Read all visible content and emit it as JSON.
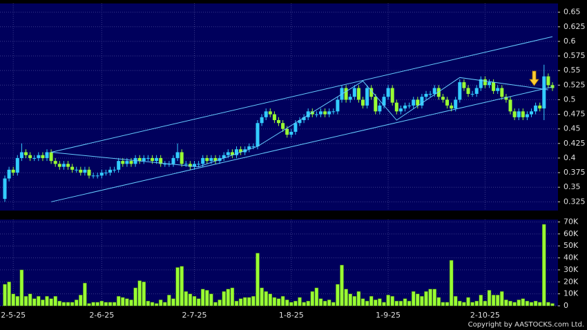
{
  "chart_data": [
    {
      "type": "candlestick",
      "categories": [
        null,
        null,
        "2-5-25",
        null,
        null,
        null,
        null,
        null,
        null,
        null,
        null,
        null,
        null,
        null,
        null,
        null,
        null,
        null,
        null,
        null,
        null,
        null,
        null,
        "2-6-25",
        null,
        null,
        null,
        null,
        null,
        null,
        null,
        null,
        null,
        null,
        null,
        null,
        null,
        null,
        null,
        null,
        null,
        null,
        null,
        null,
        null,
        "2-7-25",
        null,
        null,
        null,
        null,
        null,
        null,
        null,
        null,
        null,
        null,
        null,
        null,
        null,
        null,
        null,
        null,
        null,
        null,
        null,
        null,
        null,
        null,
        "1-8-25",
        null,
        null,
        null,
        null,
        null,
        null,
        null,
        null,
        null,
        null,
        null,
        null,
        null,
        null,
        null,
        null,
        null,
        null,
        null,
        null,
        null,
        null,
        "1-9-25",
        null,
        null,
        null,
        null,
        null,
        null,
        null,
        null,
        null,
        null,
        null,
        null,
        null,
        null,
        null,
        null,
        null,
        null,
        null,
        null,
        null,
        null,
        "2-10-25",
        null,
        null,
        null,
        null,
        null,
        null,
        null,
        null,
        null,
        null,
        null,
        null,
        null,
        null,
        null,
        null
      ],
      "open": [
        0.33,
        0.365,
        0.38,
        0.375,
        0.4,
        0.41,
        0.405,
        0.4,
        0.4,
        0.405,
        0.4,
        0.41,
        0.395,
        0.39,
        0.385,
        0.39,
        0.385,
        0.38,
        0.38,
        0.375,
        0.38,
        0.37,
        0.37,
        0.37,
        0.375,
        0.375,
        0.38,
        0.38,
        0.395,
        0.39,
        0.395,
        0.39,
        0.4,
        0.395,
        0.4,
        0.4,
        0.395,
        0.4,
        0.39,
        0.39,
        0.39,
        0.4,
        0.41,
        0.39,
        0.39,
        0.385,
        0.39,
        0.39,
        0.4,
        0.395,
        0.4,
        0.395,
        0.4,
        0.405,
        0.41,
        0.405,
        0.415,
        0.41,
        0.415,
        0.42,
        0.42,
        0.46,
        0.47,
        0.48,
        0.475,
        0.465,
        0.46,
        0.45,
        0.44,
        0.445,
        0.46,
        0.465,
        0.47,
        0.48,
        0.475,
        0.475,
        0.48,
        0.475,
        0.48,
        0.48,
        0.5,
        0.52,
        0.5,
        0.505,
        0.52,
        0.5,
        0.49,
        0.52,
        0.505,
        0.48,
        0.49,
        0.505,
        0.52,
        0.495,
        0.48,
        0.485,
        0.49,
        0.49,
        0.5,
        0.49,
        0.505,
        0.51,
        0.51,
        0.52,
        0.505,
        0.5,
        0.49,
        0.485,
        0.5,
        0.53,
        0.52,
        0.51,
        0.51,
        0.52,
        0.535,
        0.525,
        0.53,
        0.515,
        0.52,
        0.505,
        0.5,
        0.48,
        0.47,
        0.48,
        0.47,
        0.475,
        0.48,
        0.49,
        0.485,
        0.54,
        0.525
      ],
      "high": [
        0.37,
        0.385,
        0.385,
        0.405,
        0.425,
        0.415,
        0.41,
        0.405,
        0.41,
        0.41,
        0.415,
        0.415,
        0.4,
        0.395,
        0.395,
        0.395,
        0.39,
        0.385,
        0.385,
        0.385,
        0.385,
        0.375,
        0.375,
        0.38,
        0.38,
        0.385,
        0.385,
        0.4,
        0.4,
        0.4,
        0.4,
        0.405,
        0.405,
        0.405,
        0.405,
        0.405,
        0.405,
        0.405,
        0.395,
        0.395,
        0.405,
        0.425,
        0.415,
        0.395,
        0.395,
        0.395,
        0.395,
        0.405,
        0.405,
        0.405,
        0.405,
        0.405,
        0.41,
        0.415,
        0.415,
        0.42,
        0.42,
        0.42,
        0.425,
        0.425,
        0.465,
        0.475,
        0.485,
        0.485,
        0.48,
        0.47,
        0.465,
        0.455,
        0.45,
        0.465,
        0.47,
        0.475,
        0.485,
        0.485,
        0.48,
        0.485,
        0.485,
        0.485,
        0.485,
        0.505,
        0.525,
        0.525,
        0.51,
        0.525,
        0.525,
        0.505,
        0.525,
        0.525,
        0.51,
        0.495,
        0.51,
        0.525,
        0.525,
        0.5,
        0.49,
        0.495,
        0.495,
        0.505,
        0.505,
        0.51,
        0.515,
        0.515,
        0.525,
        0.525,
        0.51,
        0.505,
        0.495,
        0.505,
        0.535,
        0.535,
        0.525,
        0.515,
        0.525,
        0.54,
        0.54,
        0.535,
        0.535,
        0.525,
        0.525,
        0.51,
        0.505,
        0.485,
        0.485,
        0.485,
        0.48,
        0.485,
        0.495,
        0.495,
        0.56,
        0.545,
        0.53
      ],
      "low": [
        0.325,
        0.36,
        0.37,
        0.37,
        0.395,
        0.4,
        0.395,
        0.395,
        0.395,
        0.395,
        0.395,
        0.39,
        0.385,
        0.38,
        0.38,
        0.38,
        0.375,
        0.375,
        0.37,
        0.37,
        0.365,
        0.365,
        0.365,
        0.365,
        0.37,
        0.37,
        0.375,
        0.375,
        0.385,
        0.385,
        0.385,
        0.385,
        0.39,
        0.39,
        0.395,
        0.39,
        0.39,
        0.385,
        0.385,
        0.385,
        0.385,
        0.395,
        0.385,
        0.385,
        0.38,
        0.38,
        0.385,
        0.385,
        0.39,
        0.39,
        0.39,
        0.39,
        0.395,
        0.4,
        0.4,
        0.4,
        0.405,
        0.405,
        0.41,
        0.415,
        0.415,
        0.455,
        0.465,
        0.47,
        0.46,
        0.455,
        0.445,
        0.435,
        0.435,
        0.44,
        0.455,
        0.46,
        0.465,
        0.47,
        0.47,
        0.47,
        0.47,
        0.47,
        0.475,
        0.475,
        0.495,
        0.495,
        0.495,
        0.5,
        0.495,
        0.485,
        0.485,
        0.5,
        0.475,
        0.475,
        0.485,
        0.5,
        0.49,
        0.475,
        0.475,
        0.48,
        0.485,
        0.485,
        0.485,
        0.485,
        0.5,
        0.505,
        0.505,
        0.5,
        0.495,
        0.485,
        0.48,
        0.48,
        0.495,
        0.515,
        0.505,
        0.505,
        0.505,
        0.515,
        0.52,
        0.52,
        0.51,
        0.51,
        0.5,
        0.495,
        0.475,
        0.465,
        0.465,
        0.465,
        0.465,
        0.47,
        0.475,
        0.48,
        0.465,
        0.52,
        0.515
      ],
      "close": [
        0.365,
        0.38,
        0.375,
        0.4,
        0.41,
        0.405,
        0.4,
        0.4,
        0.405,
        0.4,
        0.41,
        0.395,
        0.39,
        0.385,
        0.39,
        0.385,
        0.38,
        0.38,
        0.375,
        0.38,
        0.37,
        0.37,
        0.37,
        0.375,
        0.375,
        0.38,
        0.38,
        0.395,
        0.39,
        0.395,
        0.39,
        0.4,
        0.395,
        0.4,
        0.4,
        0.395,
        0.4,
        0.39,
        0.39,
        0.39,
        0.4,
        0.41,
        0.39,
        0.39,
        0.385,
        0.39,
        0.39,
        0.4,
        0.395,
        0.4,
        0.395,
        0.4,
        0.405,
        0.41,
        0.405,
        0.415,
        0.41,
        0.415,
        0.42,
        0.42,
        0.46,
        0.47,
        0.48,
        0.475,
        0.465,
        0.46,
        0.45,
        0.44,
        0.445,
        0.46,
        0.465,
        0.47,
        0.48,
        0.475,
        0.475,
        0.48,
        0.475,
        0.48,
        0.48,
        0.5,
        0.52,
        0.5,
        0.505,
        0.52,
        0.5,
        0.49,
        0.52,
        0.505,
        0.48,
        0.49,
        0.505,
        0.52,
        0.495,
        0.48,
        0.485,
        0.49,
        0.49,
        0.5,
        0.49,
        0.505,
        0.51,
        0.51,
        0.52,
        0.505,
        0.5,
        0.49,
        0.485,
        0.5,
        0.53,
        0.52,
        0.51,
        0.51,
        0.52,
        0.535,
        0.525,
        0.53,
        0.515,
        0.52,
        0.505,
        0.5,
        0.48,
        0.47,
        0.48,
        0.47,
        0.475,
        0.48,
        0.49,
        0.485,
        0.54,
        0.525,
        0.52
      ],
      "up_color": "#33ccff",
      "down_color": "#99ff33",
      "trend_lines": [
        {
          "x": [
            11,
            130
          ],
          "y": [
            0.41,
            0.608
          ]
        },
        {
          "x": [
            11,
            130
          ],
          "y": [
            0.325,
            0.522
          ]
        },
        {
          "x": [
            11,
            46,
            60,
            85,
            93,
            108,
            129
          ],
          "y": [
            0.41,
            0.385,
            0.42,
            0.532,
            0.465,
            0.538,
            0.517
          ]
        }
      ],
      "trend_color": "#66ccff",
      "ylim": [
        0.31,
        0.665
      ],
      "yticks": [
        0.325,
        0.35,
        0.375,
        0.4,
        0.425,
        0.45,
        0.475,
        0.5,
        0.525,
        0.55,
        0.575,
        0.6,
        0.625,
        0.65
      ],
      "grid": true
    },
    {
      "type": "bar",
      "color": "#99ff33",
      "values": [
        18000,
        20000,
        10000,
        8000,
        30000,
        8000,
        10000,
        6000,
        8000,
        5000,
        8000,
        6000,
        8000,
        4000,
        3000,
        3000,
        3000,
        5000,
        9000,
        19000,
        2000,
        3000,
        3000,
        4000,
        3000,
        3000,
        3000,
        8000,
        7000,
        6000,
        5000,
        15000,
        21000,
        20000,
        4000,
        3000,
        2000,
        5000,
        3000,
        9000,
        6000,
        32000,
        33000,
        12000,
        10000,
        8000,
        6000,
        14000,
        13000,
        10000,
        3000,
        5000,
        12000,
        14000,
        15000,
        4000,
        6000,
        7000,
        7000,
        8000,
        44000,
        15000,
        12000,
        10000,
        7000,
        6000,
        8000,
        5000,
        3000,
        4000,
        7000,
        3000,
        4000,
        12000,
        15000,
        6000,
        4000,
        5000,
        3000,
        18000,
        34000,
        14000,
        10000,
        8000,
        12000,
        6000,
        4000,
        8000,
        5000,
        6000,
        3000,
        9000,
        8000,
        4000,
        4000,
        6000,
        4000,
        12000,
        10000,
        8000,
        12000,
        14000,
        14000,
        7000,
        3000,
        3000,
        38000,
        8000,
        4000,
        3000,
        7000,
        3000,
        4000,
        9000,
        4000,
        13000,
        9000,
        9000,
        12000,
        5000,
        4000,
        3000,
        5000,
        6000,
        4000,
        3000,
        4000,
        3000,
        68000,
        3000,
        2000
      ],
      "ylim": [
        0,
        72000
      ],
      "yticks": [
        0,
        {
          "value": 10000,
          "label": "10K"
        },
        {
          "value": 20000,
          "label": "20K"
        },
        {
          "value": 30000,
          "label": "30K"
        },
        {
          "value": 40000,
          "label": "40K"
        },
        {
          "value": 50000,
          "label": "50K"
        },
        {
          "value": 60000,
          "label": "60K"
        },
        {
          "value": 70000,
          "label": "70K"
        }
      ],
      "grid": true,
      "footer": "Copyright by AASTOCKS.com Ltd."
    }
  ]
}
